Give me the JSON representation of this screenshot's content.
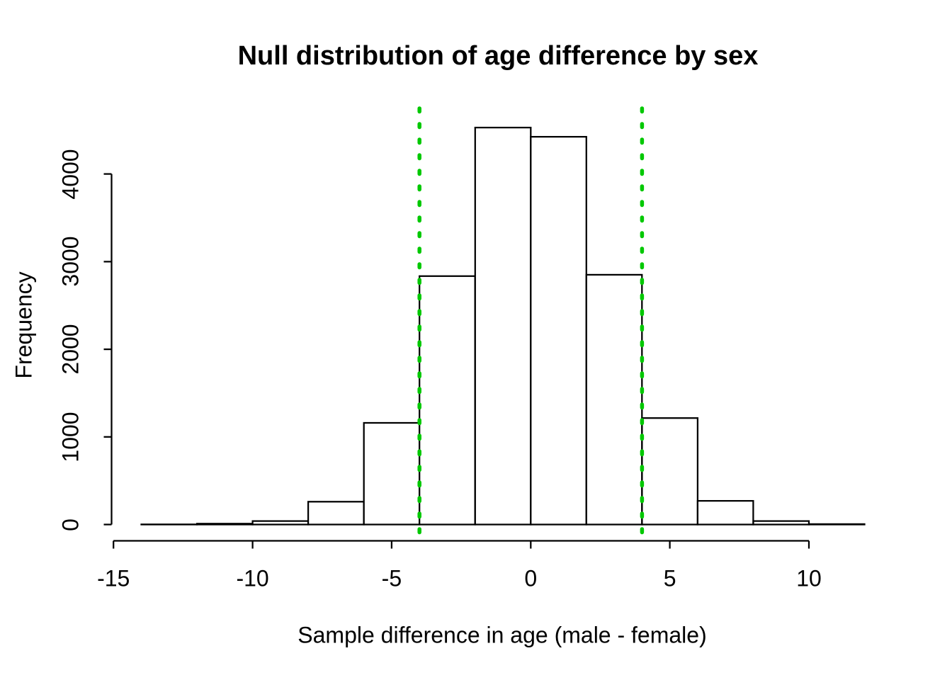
{
  "page": {
    "background": "#ffffff",
    "text_color": "#000000"
  },
  "chart_data": {
    "type": "bar",
    "variant": "histogram",
    "title": "Null distribution of age difference by sex",
    "xlabel": "Sample difference in age (male - female)",
    "ylabel": "Frequency",
    "bin_width": 2,
    "bin_edges": [
      -14,
      -12,
      -10,
      -8,
      -6,
      -4,
      -2,
      0,
      2,
      4,
      6,
      8,
      10,
      12
    ],
    "counts": [
      2,
      10,
      40,
      260,
      1160,
      2835,
      4530,
      4425,
      2850,
      1215,
      270,
      40,
      5
    ],
    "x_ticks": [
      -15,
      -10,
      -5,
      0,
      5,
      10
    ],
    "x_tick_labels": [
      "-15",
      "-10",
      "-5",
      "0",
      "5",
      "10"
    ],
    "y_ticks": [
      0,
      1000,
      2000,
      3000,
      4000
    ],
    "y_tick_labels": [
      "0",
      "1000",
      "2000",
      "3000",
      "4000"
    ],
    "xlim": [
      -15,
      10
    ],
    "ylim": [
      0,
      4000
    ],
    "grid": false,
    "legend": null,
    "bar_fill": "#ffffff",
    "bar_stroke": "#000000",
    "axis_color": "#000000",
    "reference_lines": {
      "orientation": "vertical",
      "values": [
        -4,
        4
      ],
      "color": "#00C800",
      "line_style": "dotted"
    }
  }
}
